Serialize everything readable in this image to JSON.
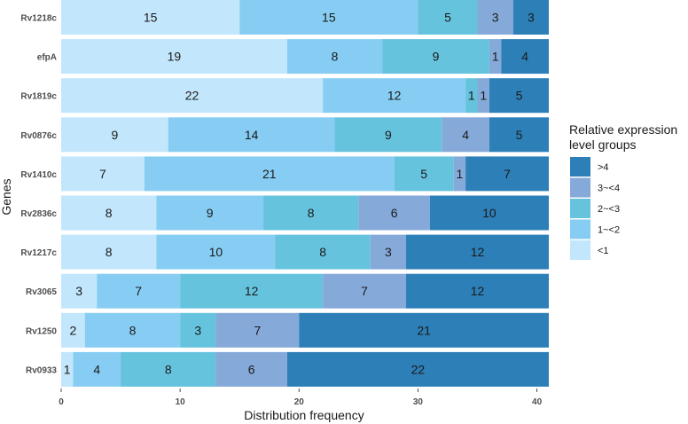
{
  "chart_data": {
    "type": "bar",
    "orientation": "horizontal",
    "stacked": true,
    "xlabel": "Distribution frequency",
    "ylabel": "Genes",
    "xlim": [
      0,
      41
    ],
    "xticks": [
      0,
      10,
      20,
      30,
      40
    ],
    "grid": false,
    "legend": {
      "title": [
        "Relative expression",
        "level groups"
      ],
      "placement": "right",
      "entries": [
        ">4",
        "3~<4",
        "2~<3",
        "1~<2",
        "<1"
      ]
    },
    "categories": [
      "Rv1218c",
      "efpA",
      "Rv1819c",
      "Rv0876c",
      "Rv1410c",
      "Rv2836c",
      "Rv1217c",
      "Rv3065",
      "Rv1250",
      "Rv0933"
    ],
    "series": [
      {
        "name": "<1",
        "color": "#c2e6fb",
        "values": [
          15,
          19,
          22,
          9,
          7,
          8,
          8,
          3,
          2,
          1
        ]
      },
      {
        "name": "1~<2",
        "color": "#87cdf3",
        "values": [
          15,
          8,
          12,
          14,
          21,
          9,
          10,
          7,
          8,
          4
        ]
      },
      {
        "name": "2~<3",
        "color": "#66c3de",
        "values": [
          5,
          9,
          1,
          9,
          5,
          8,
          8,
          12,
          3,
          8
        ]
      },
      {
        "name": "3~<4",
        "color": "#85a9d9",
        "values": [
          3,
          1,
          1,
          4,
          1,
          6,
          3,
          7,
          7,
          6
        ]
      },
      {
        "name": ">4",
        "color": "#2d7fb8",
        "values": [
          3,
          4,
          5,
          5,
          7,
          10,
          12,
          12,
          21,
          22
        ]
      }
    ]
  }
}
